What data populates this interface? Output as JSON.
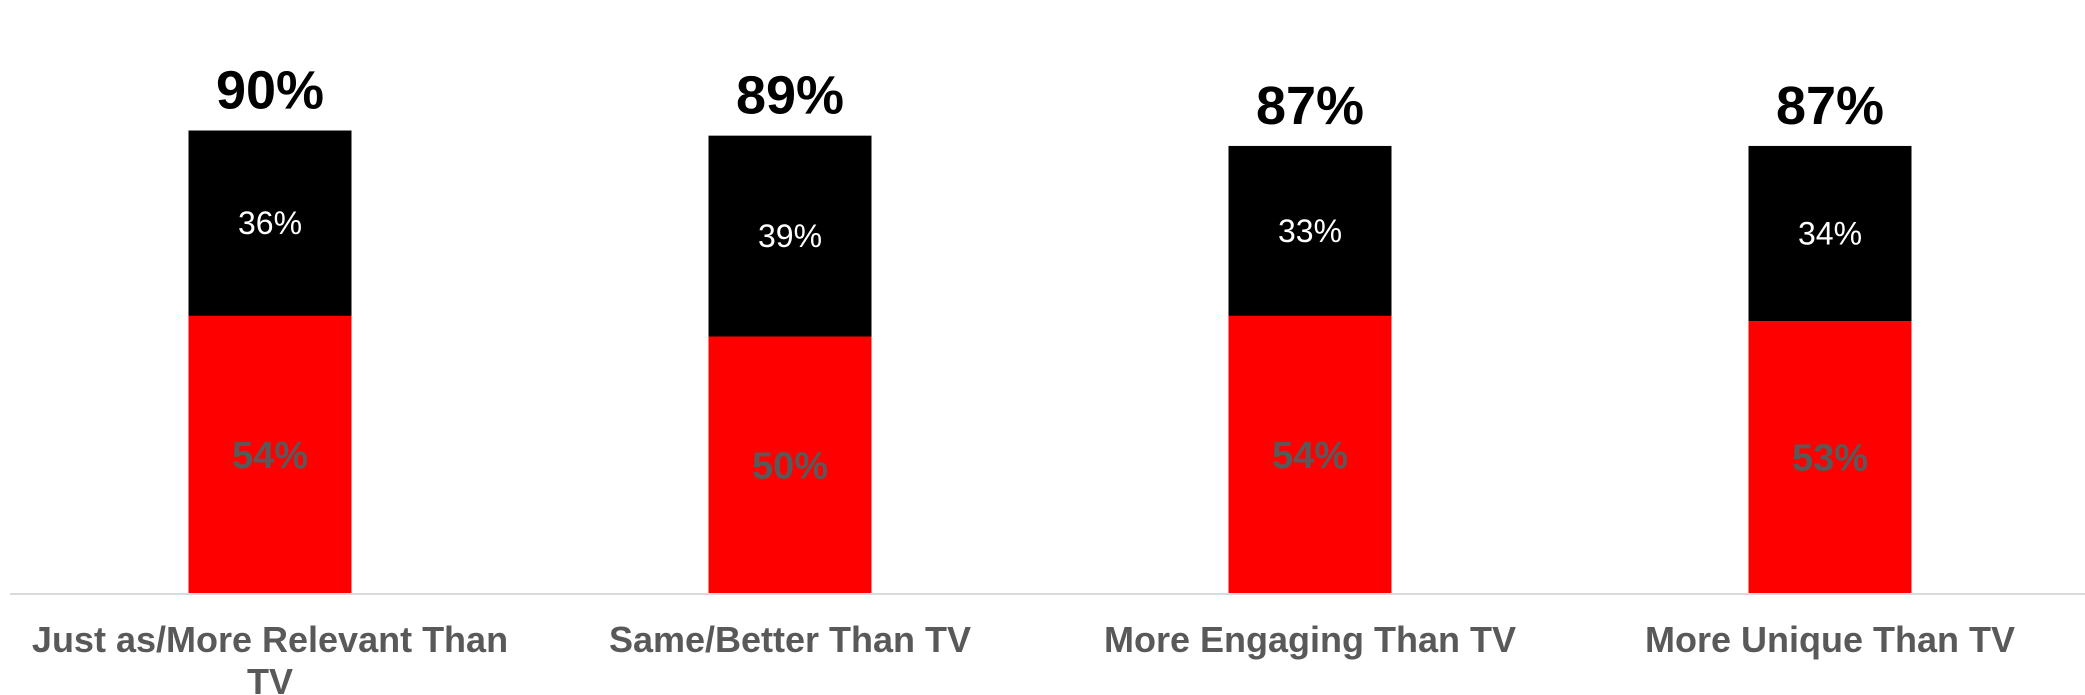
{
  "chart_data": {
    "type": "bar",
    "stacked": true,
    "categories": [
      "Just as/More Relevant Than TV",
      "Same/Better Than TV",
      "More Engaging Than TV",
      "More Unique Than TV"
    ],
    "series": [
      {
        "values": [
          54,
          50,
          54,
          53
        ],
        "color": "#ff0000"
      },
      {
        "values": [
          36,
          39,
          33,
          34
        ],
        "color": "#000000"
      }
    ],
    "totals": [
      90,
      89,
      87,
      87
    ],
    "segment_labels": [
      [
        "54%",
        "36%"
      ],
      [
        "50%",
        "39%"
      ],
      [
        "54%",
        "33%"
      ],
      [
        "53%",
        "34%"
      ]
    ],
    "total_labels": [
      "90%",
      "89%",
      "87%",
      "87%"
    ],
    "ylim": [
      0,
      100
    ],
    "grid": false,
    "legend": "none"
  }
}
